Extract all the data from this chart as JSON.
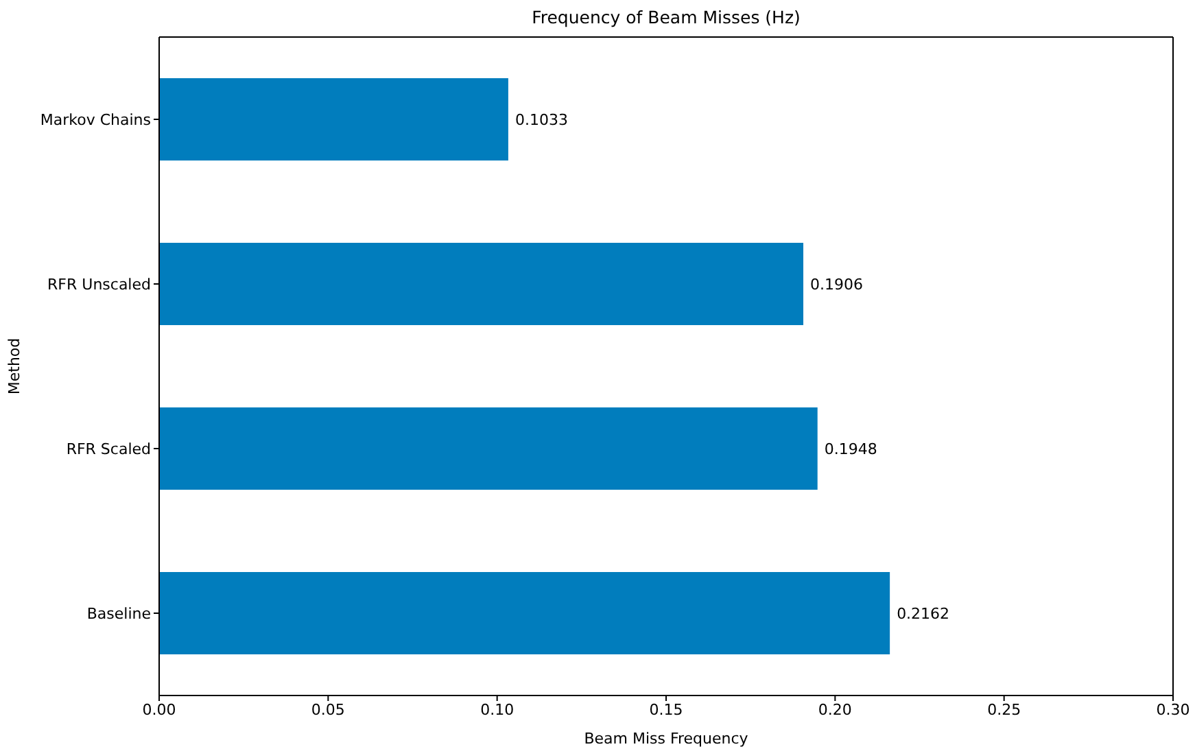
{
  "chart_data": {
    "type": "bar",
    "orientation": "horizontal",
    "title": "Frequency of Beam Misses (Hz)",
    "xlabel": "Beam Miss Frequency",
    "ylabel": "Method",
    "categories": [
      "Markov Chains",
      "RFR Unscaled",
      "RFR Scaled",
      "Baseline"
    ],
    "values": [
      0.1033,
      0.1906,
      0.1948,
      0.2162
    ],
    "color": "#017dbd",
    "xlim": [
      0,
      0.3
    ],
    "xticks": [
      {
        "value": 0,
        "label": "0.00"
      },
      {
        "value": 0.05,
        "label": "0.05"
      },
      {
        "value": 0.1,
        "label": "0.10"
      },
      {
        "value": 0.15,
        "label": "0.15"
      },
      {
        "value": 0.2,
        "label": "0.20"
      },
      {
        "value": 0.25,
        "label": "0.25"
      },
      {
        "value": 0.3,
        "label": "0.30"
      }
    ],
    "data_labels": true,
    "grid": false,
    "legend": false
  }
}
